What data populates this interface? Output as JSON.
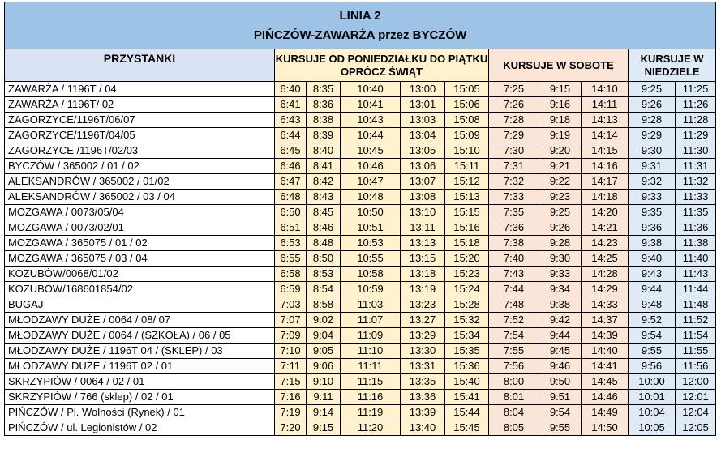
{
  "title": {
    "line": "LINIA 2",
    "route": "PIŃCZÓW-ZAWARŻA przez BYCZÓW"
  },
  "headers": {
    "stops": "PRZYSTANKI",
    "weekday": "KURSUJE OD PONIEDZIAŁKU DO PIĄTKU OPRÓCZ ŚWIĄT",
    "saturday": "KURSUJE W SOBOTĘ",
    "sunday": "KURSUJE W NIEDZIELE"
  },
  "rows": [
    {
      "stop": "ZAWARŻA / 1196T / 04",
      "weekday": [
        "6:40",
        "8:35",
        "10:40",
        "13:00",
        "15:05"
      ],
      "saturday": [
        "7:25",
        "9:15",
        "14:10"
      ],
      "sunday": [
        "9:25",
        "11:25"
      ]
    },
    {
      "stop": "ZAWARŻA / 1196T/ 02",
      "weekday": [
        "6:41",
        "8:36",
        "10:41",
        "13:01",
        "15:06"
      ],
      "saturday": [
        "7:26",
        "9:16",
        "14:11"
      ],
      "sunday": [
        "9:26",
        "11:26"
      ]
    },
    {
      "stop": "ZAGORZYCE/1196T/06/07",
      "weekday": [
        "6:43",
        "8:38",
        "10:43",
        "13:03",
        "15:08"
      ],
      "saturday": [
        "7:28",
        "9:18",
        "14:13"
      ],
      "sunday": [
        "9:28",
        "11:28"
      ]
    },
    {
      "stop": "ZAGORZYCE/1196T/04/05",
      "weekday": [
        "6:44",
        "8:39",
        "10:44",
        "13:04",
        "15:09"
      ],
      "saturday": [
        "7:29",
        "9:19",
        "14:14"
      ],
      "sunday": [
        "9:29",
        "11:29"
      ]
    },
    {
      "stop": "ZAGORZYCE /1196T/02/03",
      "weekday": [
        "6:45",
        "8:40",
        "10:45",
        "13:05",
        "15:10"
      ],
      "saturday": [
        "7:30",
        "9:20",
        "14:15"
      ],
      "sunday": [
        "9:30",
        "11:30"
      ]
    },
    {
      "stop": "BYCZÓW / 365002 / 01 / 02",
      "weekday": [
        "6:46",
        "8:41",
        "10:46",
        "13:06",
        "15:11"
      ],
      "saturday": [
        "7:31",
        "9:21",
        "14:16"
      ],
      "sunday": [
        "9:31",
        "11:31"
      ]
    },
    {
      "stop": "ALEKSANDRÓW / 365002 / 01/02",
      "weekday": [
        "6:47",
        "8:42",
        "10:47",
        "13:07",
        "15:12"
      ],
      "saturday": [
        "7:32",
        "9:22",
        "14:17"
      ],
      "sunday": [
        "9:32",
        "11:32"
      ]
    },
    {
      "stop": "ALEKSANDRÓW / 365002 / 03 / 04",
      "weekday": [
        "6:48",
        "8:43",
        "10:48",
        "13:08",
        "15:13"
      ],
      "saturday": [
        "7:33",
        "9:23",
        "14:18"
      ],
      "sunday": [
        "9:33",
        "11:33"
      ]
    },
    {
      "stop": "MOZGAWA / 0073/05/04",
      "weekday": [
        "6:50",
        "8:45",
        "10:50",
        "13:10",
        "15:15"
      ],
      "saturday": [
        "7:35",
        "9:25",
        "14:20"
      ],
      "sunday": [
        "9:35",
        "11:35"
      ]
    },
    {
      "stop": "MOZGAWA / 0073/02/01",
      "weekday": [
        "6:51",
        "8:46",
        "10:51",
        "13:11",
        "15:16"
      ],
      "saturday": [
        "7:36",
        "9:26",
        "14:21"
      ],
      "sunday": [
        "9:36",
        "11:36"
      ]
    },
    {
      "stop": "MOZGAWA / 365075 / 01 / 02",
      "weekday": [
        "6:53",
        "8:48",
        "10:53",
        "13:13",
        "15:18"
      ],
      "saturday": [
        "7:38",
        "9:28",
        "14:23"
      ],
      "sunday": [
        "9:38",
        "11:38"
      ]
    },
    {
      "stop": "MOZGAWA / 365075 / 03 / 04",
      "weekday": [
        "6:55",
        "8:50",
        "10:55",
        "13:15",
        "15:20"
      ],
      "saturday": [
        "7:40",
        "9:30",
        "14:25"
      ],
      "sunday": [
        "9:40",
        "11:40"
      ]
    },
    {
      "stop": "KOZUBÓW/0068/01/02",
      "weekday": [
        "6:58",
        "8:53",
        "10:58",
        "13:18",
        "15:23"
      ],
      "saturday": [
        "7:43",
        "9:33",
        "14:28"
      ],
      "sunday": [
        "9:43",
        "11:43"
      ]
    },
    {
      "stop": "KOZUBÓW/168601854/02",
      "weekday": [
        "6:59",
        "8:54",
        "10:59",
        "13:19",
        "15:24"
      ],
      "saturday": [
        "7:44",
        "9:34",
        "14:29"
      ],
      "sunday": [
        "9:44",
        "11:44"
      ]
    },
    {
      "stop": "BUGAJ",
      "weekday": [
        "7:03",
        "8:58",
        "11:03",
        "13:23",
        "15:28"
      ],
      "saturday": [
        "7:48",
        "9:38",
        "14:33"
      ],
      "sunday": [
        "9:48",
        "11:48"
      ]
    },
    {
      "stop": "MŁODZAWY DUŻE / 0064 / 08/ 07",
      "weekday": [
        "7:07",
        "9:02",
        "11:07",
        "13:27",
        "15:32"
      ],
      "saturday": [
        "7:52",
        "9:42",
        "14:37"
      ],
      "sunday": [
        "9:52",
        "11:52"
      ]
    },
    {
      "stop": "MŁODZAWY DUŻE / 0064 /  (SZKOŁA) / 06 / 05",
      "weekday": [
        "7:09",
        "9:04",
        "11:09",
        "13:29",
        "15:34"
      ],
      "saturday": [
        "7:54",
        "9:44",
        "14:39"
      ],
      "sunday": [
        "9:54",
        "11:54"
      ]
    },
    {
      "stop": "MŁODZAWY DUŻE / 1196T 04 / (SKLEP) / 03",
      "weekday": [
        "7:10",
        "9:05",
        "11:10",
        "13:30",
        "15:35"
      ],
      "saturday": [
        "7:55",
        "9:45",
        "14:40"
      ],
      "sunday": [
        "9:55",
        "11:55"
      ]
    },
    {
      "stop": "MŁODZAWY DUŻE / 1196T 02 / 01",
      "weekday": [
        "7:11",
        "9:06",
        "11:11",
        "13:31",
        "15:36"
      ],
      "saturday": [
        "7:56",
        "9:46",
        "14:41"
      ],
      "sunday": [
        "9:56",
        "11:56"
      ]
    },
    {
      "stop": "SKRZYPIÓW / 0064 / 02 / 01",
      "weekday": [
        "7:15",
        "9:10",
        "11:15",
        "13:35",
        "15:40"
      ],
      "saturday": [
        "8:00",
        "9:50",
        "14:45"
      ],
      "sunday": [
        "10:00",
        "12:00"
      ]
    },
    {
      "stop": "SKRZYPIÓW / 766 (sklep) / 02 / 01",
      "weekday": [
        "7:16",
        "9:11",
        "11:16",
        "13:36",
        "15:41"
      ],
      "saturday": [
        "8:01",
        "9:51",
        "14:46"
      ],
      "sunday": [
        "10:01",
        "12:01"
      ]
    },
    {
      "stop": "PIŃCZÓW / Pl. Wolności (Rynek) / 01",
      "weekday": [
        "7:19",
        "9:14",
        "11:19",
        "13:39",
        "15:44"
      ],
      "saturday": [
        "8:04",
        "9:54",
        "14:49"
      ],
      "sunday": [
        "10:04",
        "12:04"
      ]
    },
    {
      "stop": "PIŃCZÓW / ul. Legionistów  / 02",
      "weekday": [
        "7:20",
        "9:15",
        "11:20",
        "13:40",
        "15:45"
      ],
      "saturday": [
        "8:05",
        "9:55",
        "14:50"
      ],
      "sunday": [
        "10:05",
        "12:05"
      ]
    }
  ]
}
